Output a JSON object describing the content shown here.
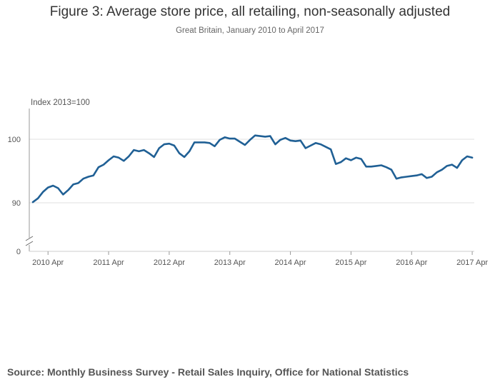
{
  "header": {
    "title": "Figure 3: Average store price, all retailing, non-seasonally adjusted",
    "subtitle": "Great Britain, January 2010 to April 2017"
  },
  "footer": {
    "source": "Source: Monthly Business Survey - Retail Sales Inquiry, Office for National Statistics"
  },
  "colors": {
    "series": "#206095",
    "grid": "#e0e0e0",
    "axis_text": "#555555"
  },
  "chart_data": {
    "type": "line",
    "title": "Figure 3: Average store price, all retailing, non-seasonally adjusted",
    "subtitle": "Great Britain, January 2010 to April 2017",
    "ylabel": "Index 2013=100",
    "xlabel": "",
    "ylim": [
      0,
      100
    ],
    "y_axis_broken": true,
    "y_ticks": [
      0,
      90,
      100
    ],
    "x_tick_labels": [
      "2010 Apr",
      "2011 Apr",
      "2012 Apr",
      "2013 Apr",
      "2014 Apr",
      "2015 Apr",
      "2016 Apr",
      "2017 Apr"
    ],
    "x_start": "2010-01",
    "grid": true,
    "series": [
      {
        "name": "",
        "values": [
          90.1,
          90.7,
          91.7,
          92.4,
          92.7,
          92.3,
          91.3,
          92.0,
          92.9,
          93.1,
          93.8,
          94.1,
          94.3,
          95.6,
          96.0,
          96.7,
          97.3,
          97.1,
          96.6,
          97.3,
          98.3,
          98.1,
          98.3,
          97.8,
          97.2,
          98.6,
          99.2,
          99.3,
          99.0,
          97.8,
          97.2,
          98.1,
          99.5,
          99.5,
          99.5,
          99.4,
          98.9,
          99.9,
          100.3,
          100.1,
          100.1,
          99.6,
          99.1,
          99.9,
          100.6,
          100.5,
          100.4,
          100.5,
          99.2,
          99.9,
          100.2,
          99.8,
          99.7,
          99.8,
          98.6,
          99.0,
          99.4,
          99.2,
          98.8,
          98.4,
          96.1,
          96.4,
          97.0,
          96.7,
          97.1,
          96.9,
          95.7,
          95.7,
          95.8,
          95.9,
          95.6,
          95.2,
          93.8,
          94.0,
          94.1,
          94.2,
          94.3,
          94.5,
          93.9,
          94.1,
          94.8,
          95.2,
          95.8,
          96.0,
          95.5,
          96.7,
          97.3,
          97.1
        ]
      }
    ]
  }
}
